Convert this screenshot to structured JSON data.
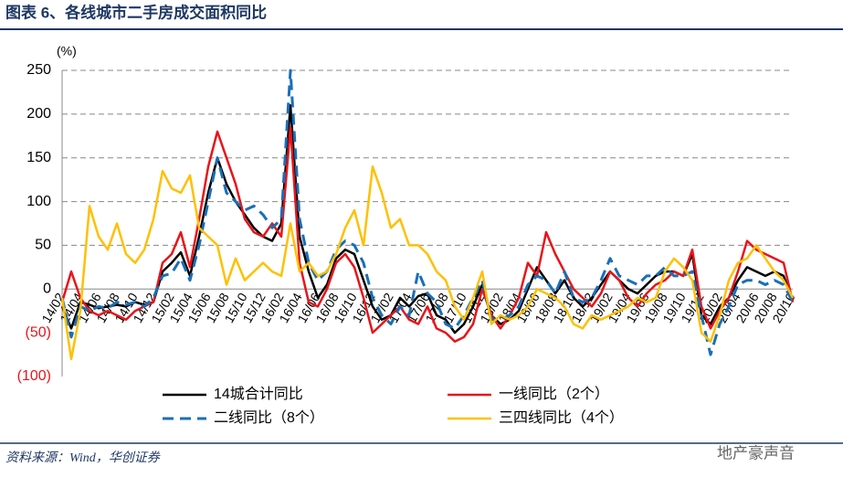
{
  "header": {
    "title": "图表 6、各线城市二手房成交面积同比"
  },
  "chart_data": {
    "type": "line",
    "y_unit": "(%)",
    "categories": [
      "14/02",
      null,
      "14/04",
      null,
      "14/06",
      null,
      "14/08",
      null,
      "14/10",
      null,
      "14/12",
      null,
      "15/02",
      null,
      "15/04",
      null,
      "15/06",
      null,
      "15/08",
      null,
      "15/10",
      null,
      "15/12",
      null,
      "16/02",
      null,
      "16/04",
      null,
      "16/06",
      null,
      "16/08",
      null,
      "16/10",
      null,
      "16/12",
      null,
      "17/02",
      null,
      "17/04",
      null,
      "17/06",
      null,
      "17/08",
      null,
      "17/10",
      null,
      "17/12",
      null,
      "18/02",
      null,
      "18/04",
      null,
      "18/06",
      null,
      "18/08",
      null,
      "18/10",
      null,
      "18/12",
      null,
      "19/02",
      null,
      "19/04",
      null,
      "19/06",
      null,
      "19/08",
      null,
      "19/10",
      null,
      "19/12",
      null,
      "20/02",
      null,
      "20/04",
      null,
      "20/06",
      null,
      "20/08",
      null,
      "20/10"
    ],
    "series": [
      {
        "name": "14城合计同比",
        "color": "#000000",
        "dash": false,
        "values": [
          -20,
          -45,
          -15,
          -18,
          -22,
          -20,
          -18,
          -20,
          -15,
          -18,
          -15,
          20,
          30,
          42,
          15,
          60,
          110,
          150,
          120,
          100,
          85,
          70,
          60,
          55,
          75,
          210,
          60,
          20,
          -10,
          5,
          35,
          45,
          40,
          10,
          -20,
          -35,
          -30,
          -10,
          -20,
          -8,
          -5,
          -30,
          -35,
          -50,
          -40,
          -20,
          5,
          -30,
          -40,
          -35,
          -25,
          0,
          25,
          10,
          -5,
          10,
          -10,
          -20,
          -10,
          5,
          20,
          10,
          0,
          -5,
          5,
          15,
          20,
          20,
          15,
          40,
          -30,
          -40,
          -20,
          -10,
          10,
          25,
          20,
          15,
          20,
          15,
          -15
        ]
      },
      {
        "name": "一线同比（2个）",
        "color": "#e8141b",
        "dash": false,
        "values": [
          -15,
          20,
          -10,
          -25,
          -30,
          -25,
          -30,
          -35,
          -25,
          -20,
          -15,
          30,
          40,
          65,
          25,
          80,
          140,
          180,
          150,
          120,
          80,
          65,
          60,
          75,
          60,
          185,
          30,
          -15,
          -20,
          0,
          30,
          40,
          25,
          -10,
          -50,
          -40,
          -30,
          -20,
          -35,
          -40,
          -20,
          -45,
          -50,
          -60,
          -55,
          -40,
          0,
          -30,
          -45,
          -30,
          -10,
          30,
          15,
          65,
          40,
          20,
          0,
          -10,
          -20,
          -5,
          20,
          10,
          -10,
          -20,
          -5,
          5,
          10,
          20,
          15,
          45,
          -20,
          -45,
          -25,
          -10,
          20,
          55,
          45,
          40,
          35,
          30,
          -15
        ]
      },
      {
        "name": "二线同比（8个）",
        "color": "#1a6fb5",
        "dash": true,
        "values": [
          -10,
          -55,
          -20,
          -25,
          -20,
          -22,
          -15,
          -18,
          -15,
          -20,
          -10,
          15,
          18,
          35,
          10,
          50,
          100,
          150,
          110,
          100,
          90,
          95,
          85,
          70,
          80,
          250,
          80,
          30,
          10,
          20,
          45,
          55,
          50,
          30,
          -10,
          -30,
          -40,
          -20,
          -30,
          20,
          -5,
          -15,
          -40,
          -45,
          -30,
          -10,
          10,
          -35,
          -35,
          -30,
          -20,
          5,
          15,
          10,
          -5,
          20,
          -10,
          -15,
          -10,
          10,
          35,
          15,
          10,
          5,
          15,
          15,
          25,
          15,
          15,
          20,
          -30,
          -75,
          -40,
          -20,
          5,
          10,
          10,
          5,
          10,
          5,
          -15
        ]
      },
      {
        "name": "三四线同比（4个）",
        "color": "#ffc000",
        "dash": false,
        "values": [
          -10,
          -80,
          -25,
          95,
          60,
          45,
          75,
          40,
          30,
          45,
          80,
          135,
          115,
          110,
          130,
          70,
          60,
          50,
          5,
          35,
          10,
          20,
          30,
          20,
          15,
          75,
          20,
          30,
          15,
          20,
          40,
          70,
          90,
          50,
          140,
          110,
          70,
          80,
          50,
          50,
          40,
          20,
          10,
          -20,
          -35,
          -10,
          20,
          -40,
          -30,
          -35,
          -30,
          -20,
          0,
          -5,
          -10,
          -20,
          -40,
          -45,
          -30,
          -35,
          -30,
          -25,
          -20,
          -10,
          -15,
          -10,
          20,
          35,
          25,
          10,
          -50,
          -60,
          -30,
          10,
          30,
          35,
          50,
          35,
          20,
          10,
          -10
        ]
      }
    ],
    "ylim": [
      -100,
      250
    ],
    "yticks": [
      {
        "value": -100,
        "label": "(100)"
      },
      {
        "value": -50,
        "label": "(50)"
      },
      0,
      50,
      100,
      150,
      200,
      250
    ],
    "grid": true,
    "legend": "bottom"
  },
  "footer": {
    "source": "资料来源：Wind，华创证券",
    "watermark": "地产豪声音"
  }
}
